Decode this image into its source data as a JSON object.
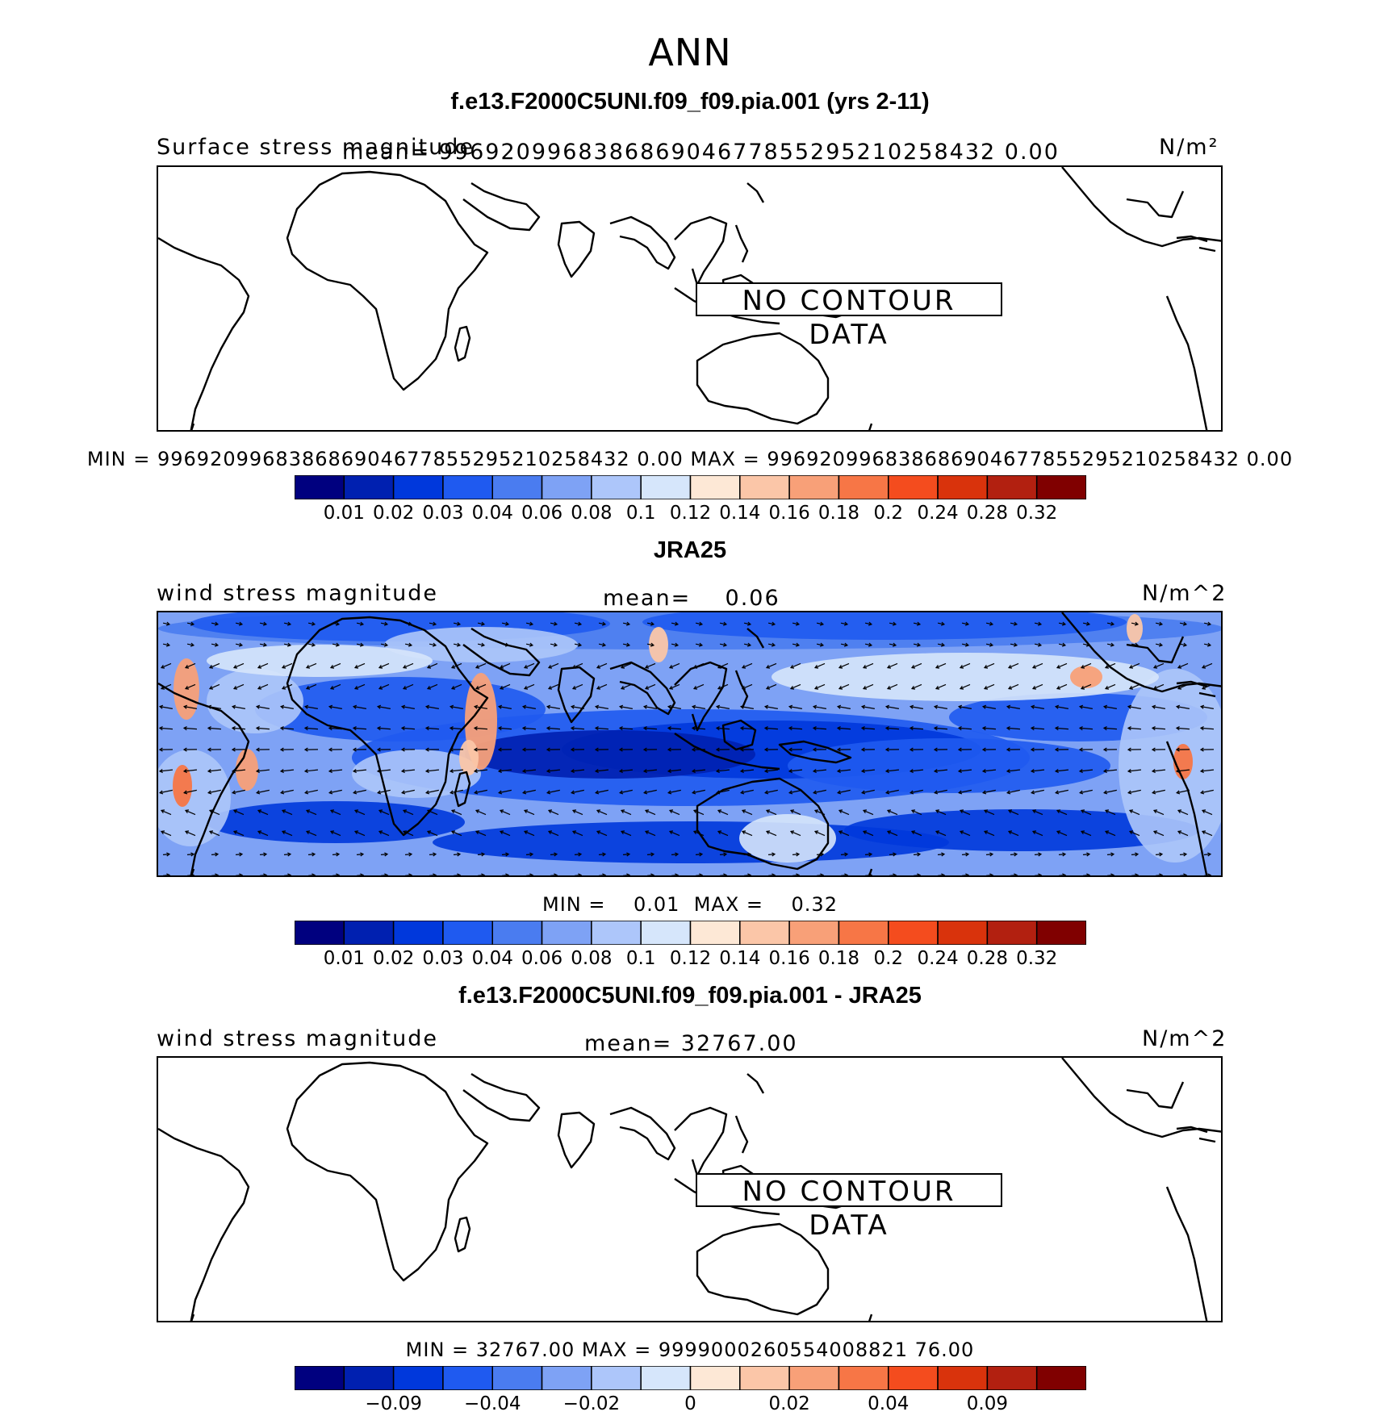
{
  "figure_title": "ANN",
  "panels": [
    {
      "title": "f.e13.F2000C5UNI.f09_f09.pia.001 (yrs 2-11)",
      "left_label": "Surface stress magnitude",
      "mean_label": "mean= 996920996838686904677855295210258432 0.00",
      "units": "N/m²",
      "no_data_text": "NO CONTOUR DATA",
      "minmax": "MIN = 996920996838686904677855295210258432 0.00  MAX = 996920996838686904677855295210258432 0.00"
    },
    {
      "title": "JRA25",
      "left_label": "wind stress magnitude",
      "mean_label": "mean=    0.06",
      "units": "N/m^2",
      "minmax": "MIN =    0.01  MAX =    0.32"
    },
    {
      "title": "f.e13.F2000C5UNI.f09_f09.pia.001 - JRA25",
      "left_label": "wind stress magnitude",
      "mean_label": "mean= 32767.00",
      "units": "N/m^2",
      "no_data_text": "NO CONTOUR DATA",
      "minmax": "MIN = 32767.00  MAX = 9999000260554008821 76.00"
    }
  ],
  "colorbar_colors": [
    "#00007f",
    "#0020b0",
    "#0038dc",
    "#1f5af0",
    "#4a7cf0",
    "#7ea2f5",
    "#adc6fa",
    "#d6e6fb",
    "#fde8d6",
    "#fbc6a8",
    "#f8a078",
    "#f77646",
    "#f44c1e",
    "#d9330c",
    "#b22010",
    "#800000"
  ],
  "colorbar_levels": [
    "0.01",
    "0.02",
    "0.03",
    "0.04",
    "0.06",
    "0.08",
    "0.1",
    "0.12",
    "0.14",
    "0.16",
    "0.18",
    "0.2",
    "0.24",
    "0.28",
    "0.32"
  ],
  "diff_levels": [
    "−0.09",
    "−0.04",
    "−0.02",
    "0",
    "0.02",
    "0.04",
    "0.09"
  ],
  "chart_data": [
    {
      "type": "heatmap",
      "title": "f.e13.F2000C5UNI.f09_f09.pia.001 (yrs 2-11)",
      "subtitle": "Surface stress magnitude",
      "units": "N/m²",
      "data": "none",
      "min": 9.969209968386869e+35,
      "max": 9.969209968386869e+35
    },
    {
      "type": "heatmap",
      "title": "JRA25",
      "subtitle": "wind stress magnitude",
      "units": "N/m^2",
      "mean": 0.06,
      "min": 0.01,
      "max": 0.32,
      "levels": [
        0.01,
        0.02,
        0.03,
        0.04,
        0.06,
        0.08,
        0.1,
        0.12,
        0.14,
        0.16,
        0.18,
        0.2,
        0.24,
        0.28,
        0.32
      ]
    },
    {
      "type": "heatmap",
      "title": "f.e13.F2000C5UNI.f09_f09.pia.001 - JRA25",
      "subtitle": "wind stress magnitude",
      "units": "N/m^2",
      "mean": 32767.0,
      "min": 32767.0,
      "levels": [
        -0.09,
        -0.04,
        -0.02,
        0,
        0.02,
        0.04,
        0.09
      ]
    }
  ]
}
